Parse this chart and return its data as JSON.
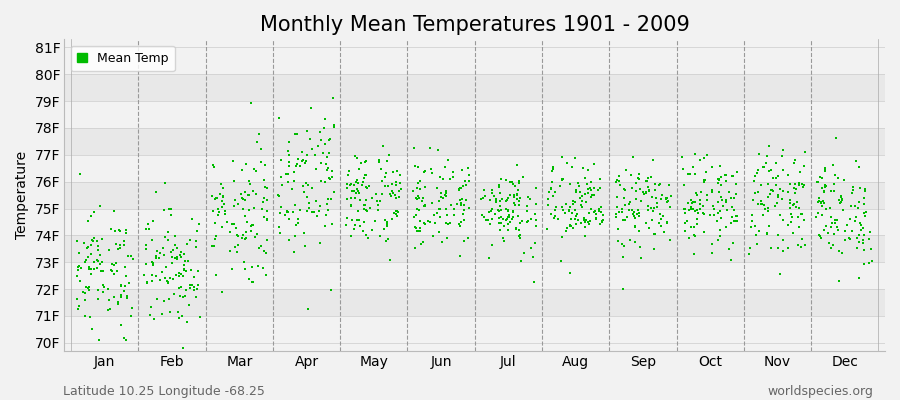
{
  "title": "Monthly Mean Temperatures 1901 - 2009",
  "ylabel": "Temperature",
  "xlabel_months": [
    "Jan",
    "Feb",
    "Mar",
    "Apr",
    "May",
    "Jun",
    "Jul",
    "Aug",
    "Sep",
    "Oct",
    "Nov",
    "Dec"
  ],
  "ytick_labels": [
    "70F",
    "71F",
    "72F",
    "73F",
    "74F",
    "75F",
    "76F",
    "77F",
    "78F",
    "79F",
    "80F",
    "81F"
  ],
  "ytick_values": [
    70,
    71,
    72,
    73,
    74,
    75,
    76,
    77,
    78,
    79,
    80,
    81
  ],
  "ylim": [
    69.7,
    81.3
  ],
  "marker_color": "#00bb00",
  "marker_size": 3,
  "bg_color": "#f2f2f2",
  "band_colors": [
    "#f2f2f2",
    "#e8e8e8"
  ],
  "grid_color": "#aaaaaa",
  "legend_label": "Mean Temp",
  "footer_left": "Latitude 10.25 Longitude -68.25",
  "footer_right": "worldspecies.org",
  "years": 109,
  "month_means": [
    72.7,
    72.8,
    74.8,
    76.2,
    75.4,
    75.2,
    75.0,
    75.1,
    75.0,
    75.2,
    75.3,
    74.8
  ],
  "month_stds": [
    1.1,
    1.1,
    1.3,
    1.4,
    0.9,
    0.85,
    0.8,
    0.8,
    0.8,
    0.82,
    0.9,
    1.0
  ],
  "title_fontsize": 15,
  "axis_fontsize": 10,
  "footer_fontsize": 9,
  "legend_fontsize": 9
}
